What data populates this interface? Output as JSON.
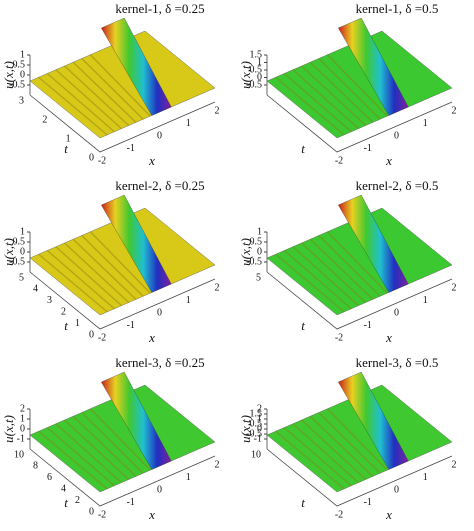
{
  "chart_data": [
    {
      "type": "surface",
      "title": "kernel-1, δ =0.25",
      "zlabel": "u(x,t)",
      "xlabel": "x",
      "ylabel": "t",
      "color": "#d8c818",
      "zticks": [
        1,
        0.5,
        0,
        -0.5
      ],
      "yticks": [
        3,
        2,
        1,
        0
      ],
      "xticks": [
        -2,
        -1,
        0,
        1,
        2
      ]
    },
    {
      "type": "surface",
      "title": "kernel-1, δ =0.5",
      "zlabel": "u(x,t)",
      "xlabel": "x",
      "ylabel": "t",
      "color": "#3cc830",
      "zticks": [
        1.5,
        1,
        0.5,
        0,
        -0.5
      ],
      "yticks": [],
      "xticks": [
        -2,
        -1,
        0,
        1,
        2
      ]
    },
    {
      "type": "surface",
      "title": "kernel-2, δ =0.25",
      "zlabel": "u(x,t)",
      "xlabel": "x",
      "ylabel": "t",
      "color": "#d8c818",
      "zticks": [
        1,
        0.5,
        0,
        -0.5
      ],
      "yticks": [
        5,
        4,
        3,
        2,
        1,
        0
      ],
      "xticks": [
        -2,
        -1,
        0,
        1,
        2
      ]
    },
    {
      "type": "surface",
      "title": "kernel-2, δ =0.5",
      "zlabel": "u(x,t)",
      "xlabel": "x",
      "ylabel": "t",
      "color": "#3cc830",
      "zticks": [
        1,
        0.5,
        0,
        -0.5
      ],
      "yticks": [
        5
      ],
      "xticks": [
        -2,
        -1,
        0,
        1,
        2
      ]
    },
    {
      "type": "surface",
      "title": "kernel-3, δ =0.25",
      "zlabel": "u(x,t)",
      "xlabel": "x",
      "ylabel": "t",
      "color": "#40c830",
      "zticks": [
        2,
        1,
        0,
        -1
      ],
      "yticks": [
        10,
        8,
        6,
        4,
        2,
        0
      ],
      "xticks": [
        -2,
        -1,
        0,
        1,
        2
      ]
    },
    {
      "type": "surface",
      "title": "kernel-3, δ =0.5",
      "zlabel": "u(x,t)",
      "xlabel": "x",
      "ylabel": "t",
      "color": "#40c830",
      "zticks": [
        2,
        1.5,
        1,
        0.5,
        0,
        -0.5,
        -1
      ],
      "yticks": [
        10
      ],
      "xticks": [
        -2,
        -1,
        0,
        1,
        2
      ]
    }
  ]
}
